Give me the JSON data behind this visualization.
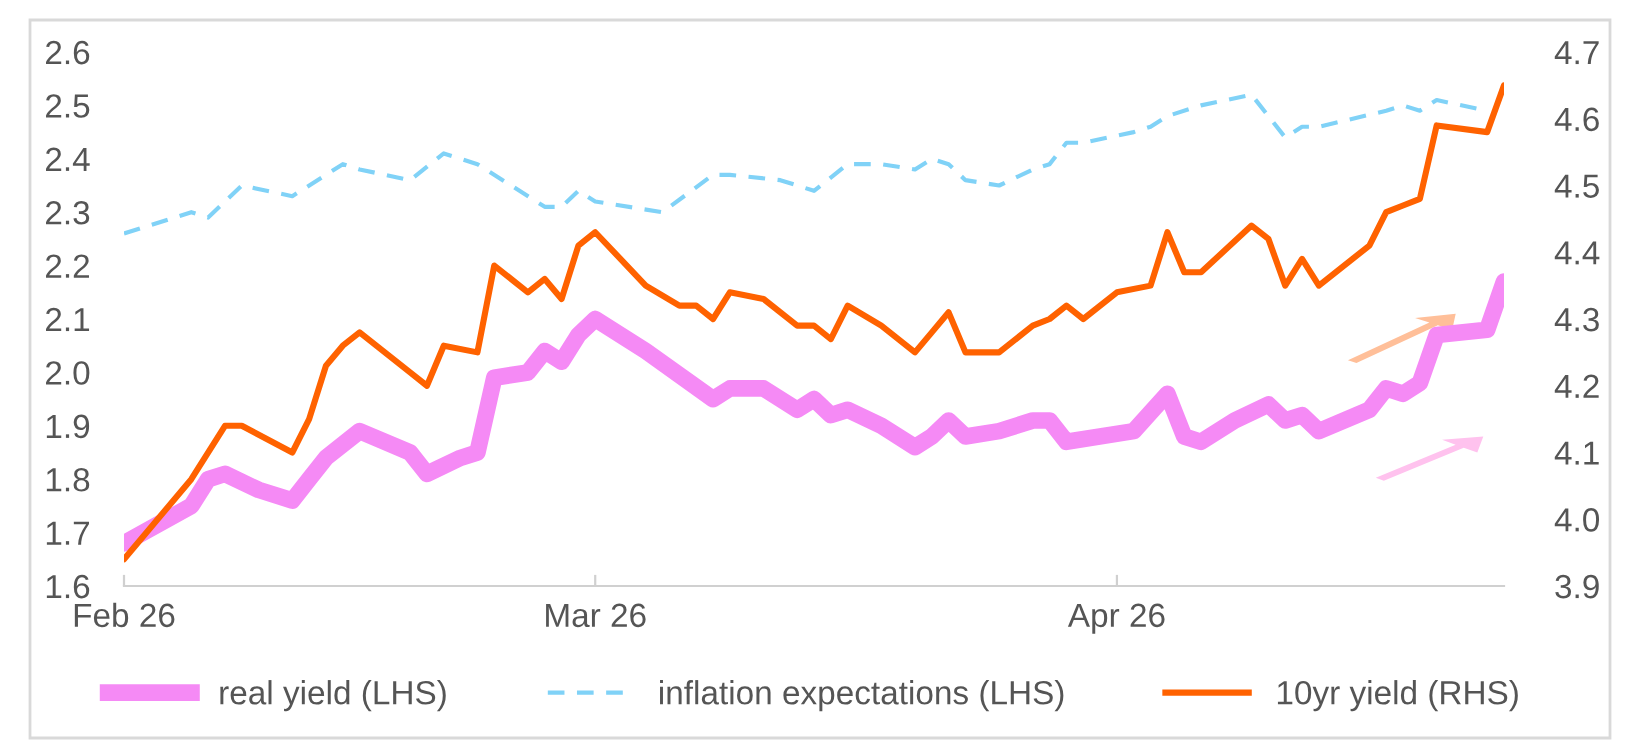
{
  "chart_data": {
    "type": "line",
    "xlim": [
      "2026-02-01",
      "2026-04-24"
    ],
    "xticks": [
      {
        "value": "2026-02-01",
        "label": "Feb 26"
      },
      {
        "value": "2026-03-01",
        "label": "Mar 26"
      },
      {
        "value": "2026-04-01",
        "label": "Apr 26"
      }
    ],
    "ylim": [
      1.6,
      2.6
    ],
    "yticks": [
      1.6,
      1.7,
      1.8,
      1.9,
      {
        "value": 2.0,
        "label": "2.0"
      },
      2.1,
      2.2,
      2.3,
      2.4,
      2.5,
      2.6
    ],
    "y2lim": [
      3.9,
      4.7
    ],
    "y2ticks": [
      3.9,
      {
        "value": 4.0,
        "label": "4.0"
      },
      4.1,
      4.2,
      4.3,
      4.4,
      4.5,
      4.6,
      4.7
    ],
    "grid": false,
    "legend": "bottom",
    "series": [
      {
        "name": "real yield (LHS)",
        "color": "#f58af5",
        "line_style": "solid",
        "x": [
          "2026-02-01",
          "2026-02-05",
          "2026-02-06",
          "2026-02-07",
          "2026-02-09",
          "2026-02-11",
          "2026-02-12",
          "2026-02-13",
          "2026-02-15",
          "2026-02-18",
          "2026-02-19",
          "2026-02-21",
          "2026-02-22",
          "2026-02-23",
          "2026-02-25",
          "2026-02-26",
          "2026-02-27",
          "2026-02-28",
          "2026-03-01",
          "2026-03-04",
          "2026-03-08",
          "2026-03-09",
          "2026-03-11",
          "2026-03-13",
          "2026-03-14",
          "2026-03-15",
          "2026-03-16",
          "2026-03-18",
          "2026-03-20",
          "2026-03-21",
          "2026-03-22",
          "2026-03-23",
          "2026-03-25",
          "2026-03-27",
          "2026-03-28",
          "2026-03-29",
          "2026-04-02",
          "2026-04-04",
          "2026-04-05",
          "2026-04-06",
          "2026-04-08",
          "2026-04-10",
          "2026-04-11",
          "2026-04-12",
          "2026-04-13",
          "2026-04-16",
          "2026-04-17",
          "2026-04-18",
          "2026-04-19",
          "2026-04-20",
          "2026-04-23",
          "2026-04-24"
        ],
        "values": [
          1.68,
          1.75,
          1.8,
          1.81,
          1.78,
          1.76,
          1.8,
          1.84,
          1.89,
          1.85,
          1.81,
          1.84,
          1.85,
          1.99,
          2.0,
          2.04,
          2.02,
          2.07,
          2.1,
          2.04,
          1.95,
          1.97,
          1.97,
          1.93,
          1.95,
          1.92,
          1.93,
          1.9,
          1.86,
          1.88,
          1.91,
          1.88,
          1.89,
          1.91,
          1.91,
          1.87,
          1.89,
          1.96,
          1.88,
          1.87,
          1.91,
          1.94,
          1.91,
          1.92,
          1.89,
          1.93,
          1.97,
          1.96,
          1.98,
          2.07,
          2.08,
          2.17
        ]
      },
      {
        "name": "inflation expectations (LHS)",
        "color": "#80d2f7",
        "line_style": "dashed",
        "x": [
          "2026-02-01",
          "2026-02-05",
          "2026-02-06",
          "2026-02-08",
          "2026-02-11",
          "2026-02-14",
          "2026-02-15",
          "2026-02-18",
          "2026-02-20",
          "2026-02-22",
          "2026-02-26",
          "2026-02-27",
          "2026-02-28",
          "2026-03-01",
          "2026-03-05",
          "2026-03-08",
          "2026-03-09",
          "2026-03-12",
          "2026-03-14",
          "2026-03-16",
          "2026-03-18",
          "2026-03-20",
          "2026-03-21",
          "2026-03-22",
          "2026-03-23",
          "2026-03-25",
          "2026-03-27",
          "2026-03-28",
          "2026-03-29",
          "2026-03-30",
          "2026-04-02",
          "2026-04-03",
          "2026-04-04",
          "2026-04-06",
          "2026-04-09",
          "2026-04-11",
          "2026-04-12",
          "2026-04-13",
          "2026-04-17",
          "2026-04-18",
          "2026-04-19",
          "2026-04-20",
          "2026-04-23"
        ],
        "values": [
          2.26,
          2.3,
          2.29,
          2.35,
          2.33,
          2.39,
          2.38,
          2.36,
          2.41,
          2.39,
          2.31,
          2.31,
          2.34,
          2.32,
          2.3,
          2.37,
          2.37,
          2.36,
          2.34,
          2.39,
          2.39,
          2.38,
          2.4,
          2.39,
          2.36,
          2.35,
          2.38,
          2.39,
          2.43,
          2.43,
          2.45,
          2.46,
          2.48,
          2.5,
          2.52,
          2.44,
          2.46,
          2.46,
          2.49,
          2.5,
          2.49,
          2.51,
          2.49
        ]
      },
      {
        "name": "10yr yield (RHS)",
        "color": "#ff6200",
        "line_style": "solid",
        "axis": "y2",
        "x": [
          "2026-02-01",
          "2026-02-04",
          "2026-02-05",
          "2026-02-07",
          "2026-02-08",
          "2026-02-11",
          "2026-02-12",
          "2026-02-13",
          "2026-02-14",
          "2026-02-15",
          "2026-02-18",
          "2026-02-19",
          "2026-02-20",
          "2026-02-22",
          "2026-02-23",
          "2026-02-25",
          "2026-02-26",
          "2026-02-27",
          "2026-02-28",
          "2026-03-01",
          "2026-03-04",
          "2026-03-06",
          "2026-03-07",
          "2026-03-08",
          "2026-03-09",
          "2026-03-11",
          "2026-03-13",
          "2026-03-14",
          "2026-03-15",
          "2026-03-16",
          "2026-03-18",
          "2026-03-20",
          "2026-03-21",
          "2026-03-22",
          "2026-03-23",
          "2026-03-25",
          "2026-03-27",
          "2026-03-28",
          "2026-03-29",
          "2026-03-30",
          "2026-04-01",
          "2026-04-03",
          "2026-04-04",
          "2026-04-05",
          "2026-04-06",
          "2026-04-09",
          "2026-04-10",
          "2026-04-11",
          "2026-04-12",
          "2026-04-13",
          "2026-04-16",
          "2026-04-17",
          "2026-04-18",
          "2026-04-19",
          "2026-04-20",
          "2026-04-23",
          "2026-04-24"
        ],
        "values": [
          3.94,
          4.03,
          4.06,
          4.14,
          4.14,
          4.1,
          4.15,
          4.23,
          4.26,
          4.28,
          4.22,
          4.2,
          4.26,
          4.25,
          4.38,
          4.34,
          4.36,
          4.33,
          4.41,
          4.43,
          4.35,
          4.32,
          4.32,
          4.3,
          4.34,
          4.33,
          4.29,
          4.29,
          4.27,
          4.32,
          4.29,
          4.25,
          4.28,
          4.31,
          4.25,
          4.25,
          4.29,
          4.3,
          4.32,
          4.3,
          4.34,
          4.35,
          4.43,
          4.37,
          4.37,
          4.44,
          4.42,
          4.35,
          4.39,
          4.35,
          4.41,
          4.46,
          4.47,
          4.48,
          4.59,
          4.58,
          4.65
        ]
      }
    ]
  }
}
